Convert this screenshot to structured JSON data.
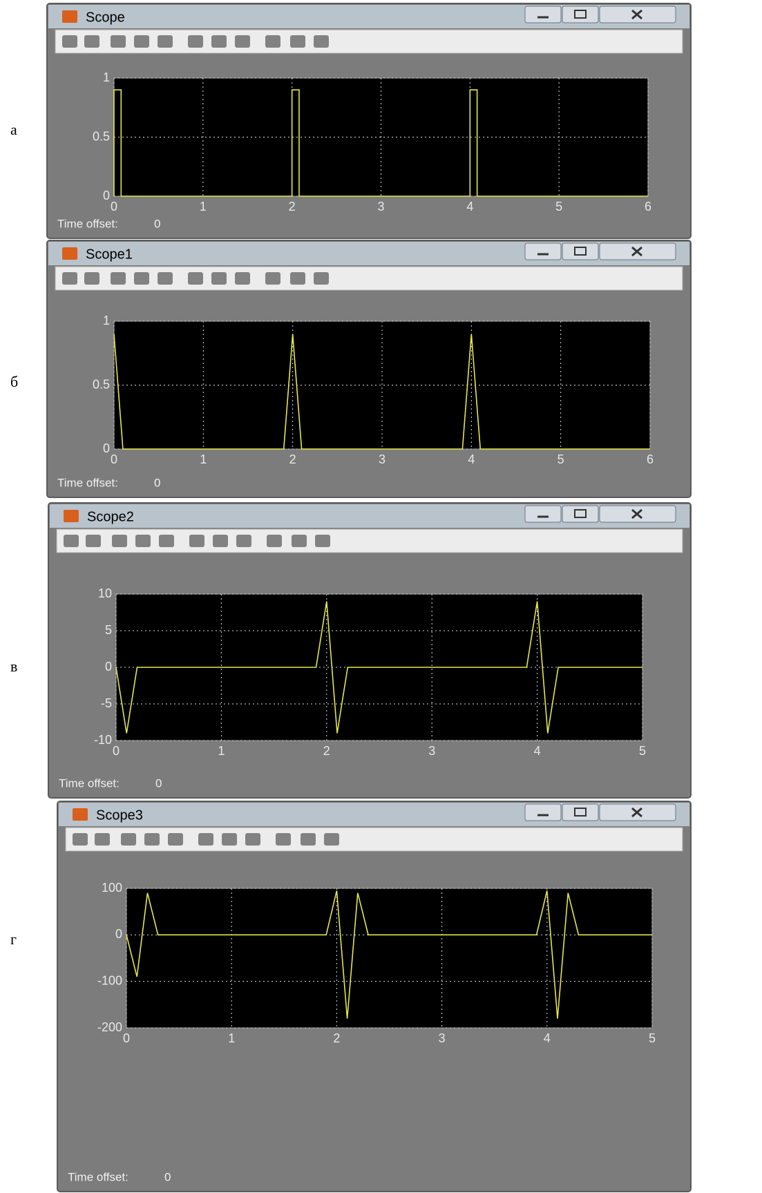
{
  "chart_data": [
    {
      "type": "line",
      "title": "Scope",
      "panel_label": "а",
      "time_offset_label": "Time offset:",
      "time_offset_value": "0",
      "x": [
        0,
        0,
        0.08,
        0.08,
        2,
        2,
        2.08,
        2.08,
        4,
        4,
        4.08,
        4.08,
        6
      ],
      "series": [
        {
          "name": "Scope",
          "color": "#e6e64c",
          "values": [
            0,
            0.9,
            0.9,
            0,
            0,
            0.9,
            0.9,
            0,
            0,
            0.9,
            0.9,
            0,
            0
          ]
        }
      ],
      "xlim": [
        0,
        6
      ],
      "xticks": [
        0,
        1,
        2,
        3,
        4,
        5,
        6
      ],
      "ylim": [
        0,
        1
      ],
      "yticks": [
        0,
        0.5,
        1
      ],
      "grid": true
    },
    {
      "type": "line",
      "title": "Scope1",
      "panel_label": "б",
      "time_offset_label": "Time offset:",
      "time_offset_value": "0",
      "x": [
        0,
        0.1,
        1.9,
        2,
        2.1,
        3.9,
        4,
        4.1,
        6
      ],
      "series": [
        {
          "name": "Scope1",
          "color": "#e6e64c",
          "values": [
            0.9,
            0,
            0,
            0.9,
            0,
            0,
            0.9,
            0,
            0
          ]
        }
      ],
      "xlim": [
        0,
        6
      ],
      "xticks": [
        0,
        1,
        2,
        3,
        4,
        5,
        6
      ],
      "ylim": [
        0,
        1
      ],
      "yticks": [
        0,
        0.5,
        1
      ],
      "grid": true
    },
    {
      "type": "line",
      "title": "Scope2",
      "panel_label": "в",
      "time_offset_label": "Time offset:",
      "time_offset_value": "0",
      "x": [
        0,
        0.1,
        0.2,
        1.9,
        2,
        2.1,
        2.2,
        3.9,
        4,
        4.1,
        4.2,
        5
      ],
      "series": [
        {
          "name": "Scope2",
          "color": "#e6e64c",
          "values": [
            0,
            -9,
            0,
            0,
            9,
            -9,
            0,
            0,
            9,
            -9,
            0,
            0
          ]
        }
      ],
      "xlim": [
        0,
        5
      ],
      "xticks": [
        0,
        1,
        2,
        3,
        4,
        5
      ],
      "ylim": [
        -10,
        10
      ],
      "yticks": [
        -10,
        -5,
        0,
        5,
        10
      ],
      "grid": true
    },
    {
      "type": "line",
      "title": "Scope3",
      "panel_label": "г",
      "time_offset_label": "Time offset:",
      "time_offset_value": "0",
      "x": [
        0,
        0.1,
        0.2,
        0.3,
        1.9,
        2,
        2.1,
        2.2,
        2.3,
        3.9,
        4,
        4.1,
        4.2,
        4.3,
        5
      ],
      "series": [
        {
          "name": "Scope3",
          "color": "#e6e64c",
          "values": [
            0,
            -90,
            90,
            0,
            0,
            95,
            -180,
            90,
            0,
            0,
            95,
            -180,
            90,
            0,
            0
          ]
        }
      ],
      "xlim": [
        0,
        5
      ],
      "xticks": [
        0,
        1,
        2,
        3,
        4,
        5
      ],
      "ylim": [
        -200,
        100
      ],
      "yticks": [
        -200,
        -100,
        0,
        100
      ],
      "grid": true
    }
  ]
}
